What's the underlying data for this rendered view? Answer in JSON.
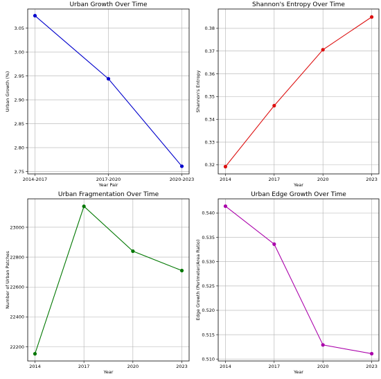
{
  "chart_data": [
    {
      "type": "line",
      "title": "Urban Growth Over Time",
      "xlabel": "Year Pair",
      "ylabel": "Urban Growth (%)",
      "categories": [
        "2014-2017",
        "2017-2020",
        "2020-2023"
      ],
      "values": [
        3.076,
        2.944,
        2.761
      ],
      "ylim": [
        2.745,
        3.09
      ],
      "yticks": [
        2.75,
        2.8,
        2.85,
        2.9,
        2.95,
        3.0,
        3.05
      ],
      "ytick_labels": [
        "2.75",
        "2.80",
        "2.85",
        "2.90",
        "2.95",
        "3.00",
        "3.05"
      ],
      "color": "#0000cc",
      "grid": true
    },
    {
      "type": "line",
      "title": "Shannon's Entropy Over Time",
      "xlabel": "Year",
      "ylabel": "Shannon's Entropy",
      "categories": [
        "2014",
        "2017",
        "2020",
        "2023"
      ],
      "values": [
        0.3192,
        0.346,
        0.3706,
        0.385
      ],
      "ylim": [
        0.316,
        0.3885
      ],
      "yticks": [
        0.32,
        0.33,
        0.34,
        0.35,
        0.36,
        0.37,
        0.38
      ],
      "ytick_labels": [
        "0.32",
        "0.33",
        "0.34",
        "0.35",
        "0.36",
        "0.37",
        "0.38"
      ],
      "color": "#dd1111",
      "grid": true
    },
    {
      "type": "line",
      "title": "Urban Fragmentation Over Time",
      "xlabel": "Year",
      "ylabel": "Number of Urban Patches",
      "categories": [
        "2014",
        "2017",
        "2020",
        "2023"
      ],
      "values": [
        22153,
        23140,
        22840,
        22710
      ],
      "ylim": [
        22105,
        23190
      ],
      "yticks": [
        22200,
        22400,
        22600,
        22800,
        23000
      ],
      "ytick_labels": [
        "22200",
        "22400",
        "22600",
        "22800",
        "23000"
      ],
      "color": "#007700",
      "grid": true
    },
    {
      "type": "line",
      "title": "Urban Edge Growth Over Time",
      "xlabel": "Year",
      "ylabel": "Edge Growth (Perimeter/Area Ratio)",
      "categories": [
        "2014",
        "2017",
        "2020",
        "2023"
      ],
      "values": [
        0.5414,
        0.5336,
        0.5129,
        0.5111
      ],
      "ylim": [
        0.5096,
        0.5429
      ],
      "yticks": [
        0.51,
        0.515,
        0.52,
        0.525,
        0.53,
        0.535,
        0.54
      ],
      "ytick_labels": [
        "0.510",
        "0.515",
        "0.520",
        "0.525",
        "0.530",
        "0.535",
        "0.540"
      ],
      "color": "#aa00aa",
      "grid": true
    }
  ]
}
